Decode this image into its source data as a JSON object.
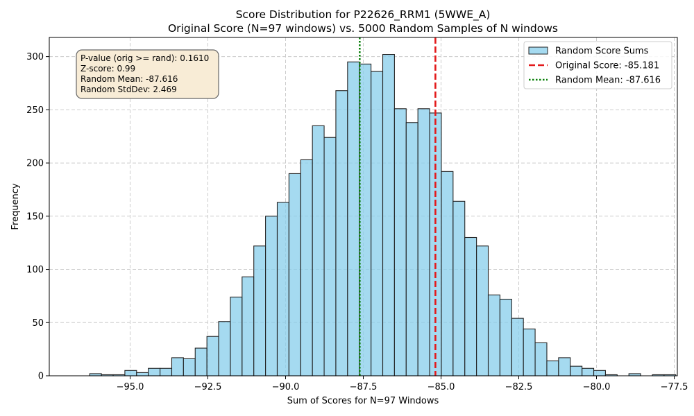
{
  "chart_data": {
    "type": "bar",
    "title": "Score Distribution for P22626_RRM1 (5WWE_A)",
    "subtitle": "Original Score (N=97 windows) vs. 5000 Random Samples of N windows",
    "xlabel": "Sum of Scores for N=97 Windows",
    "ylabel": "Frequency",
    "xlim": [
      -97.6,
      -77.4
    ],
    "ylim": [
      0,
      318
    ],
    "grid": true,
    "x_ticks": [
      -95.0,
      -92.5,
      -90.0,
      -87.5,
      -85.0,
      -82.5,
      -80.0,
      -77.5
    ],
    "x_tick_labels": [
      "−95.0",
      "−92.5",
      "−90.0",
      "−87.5",
      "−85.0",
      "−82.5",
      "−80.0",
      "−77.5"
    ],
    "y_ticks": [
      0,
      50,
      100,
      150,
      200,
      250,
      300
    ],
    "y_tick_labels": [
      "0",
      "50",
      "100",
      "150",
      "200",
      "250",
      "300"
    ],
    "bins": {
      "start": -96.3,
      "width": 0.377,
      "counts": [
        2,
        1,
        1,
        5,
        3,
        7,
        7,
        17,
        16,
        26,
        37,
        51,
        74,
        93,
        122,
        150,
        163,
        190,
        203,
        235,
        224,
        268,
        295,
        293,
        286,
        302,
        251,
        238,
        251,
        247,
        192,
        164,
        130,
        122,
        76,
        72,
        54,
        44,
        31,
        14,
        17,
        9,
        7,
        5,
        1,
        0,
        2,
        0,
        1,
        1
      ]
    },
    "series": [
      {
        "name": "Random Score Sums",
        "kind": "histogram",
        "color": "#87ceeb",
        "edge": "#222222"
      }
    ],
    "vlines": [
      {
        "name": "Original Score: -85.181",
        "x": -85.181,
        "color": "#e31a1c",
        "style": "dashed"
      },
      {
        "name": "Random Mean: -87.616",
        "x": -87.616,
        "color": "#0a800a",
        "style": "dotted"
      }
    ],
    "legend_position": "top-right",
    "stats_box": {
      "lines": [
        "P-value (orig >= rand): 0.1610",
        "Z-score: 0.99",
        "Random Mean: -87.616",
        "Random StdDev: 2.469"
      ],
      "position": "top-left",
      "background": "#f8ecd6"
    }
  }
}
